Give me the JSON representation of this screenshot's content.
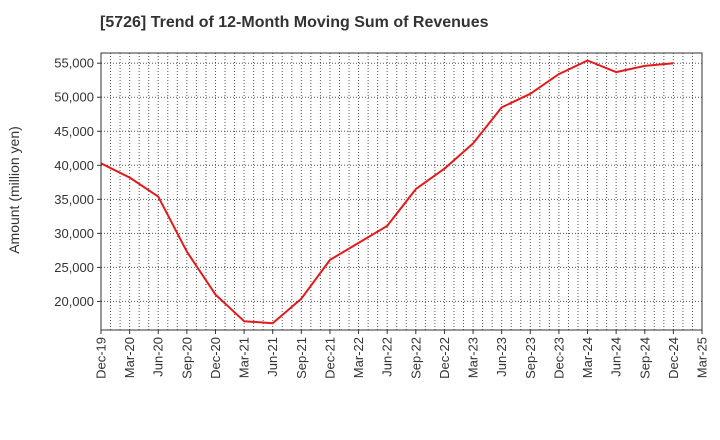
{
  "chart_data": {
    "type": "line",
    "title": "[5726]  Trend of 12-Month Moving Sum of Revenues",
    "ylabel": "Amount (million yen)",
    "xlabel": "",
    "categories": [
      "Dec-19",
      "Mar-20",
      "Jun-20",
      "Sep-20",
      "Dec-20",
      "Mar-21",
      "Jun-21",
      "Sep-21",
      "Dec-21",
      "Mar-22",
      "Jun-22",
      "Sep-22",
      "Dec-22",
      "Mar-23",
      "Jun-23",
      "Sep-23",
      "Dec-23",
      "Mar-24",
      "Jun-24",
      "Sep-24",
      "Dec-24",
      "Mar-25"
    ],
    "series": [
      {
        "color": "#e31a1c",
        "values": [
          40300,
          38200,
          35400,
          27300,
          21000,
          17100,
          16800,
          20400,
          26100,
          28600,
          31100,
          36500,
          39500,
          43200,
          48500,
          50500,
          53400,
          55400,
          53700,
          54600,
          55000,
          null
        ]
      }
    ],
    "y_ticks": [
      "20,000",
      "25,000",
      "30,000",
      "35,000",
      "40,000",
      "45,000",
      "50,000",
      "55,000"
    ],
    "ylim": [
      15800,
      56500
    ],
    "grid": true,
    "grid_style": "dotted",
    "legend": "none"
  }
}
